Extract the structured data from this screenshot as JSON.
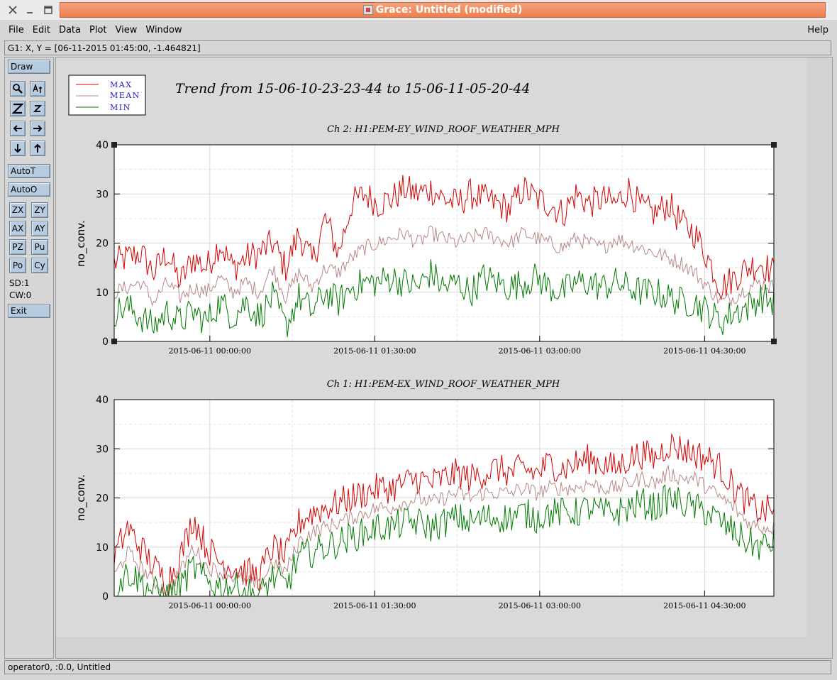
{
  "window": {
    "title": "Grace: Untitled (modified)"
  },
  "menu": {
    "file": "File",
    "edit": "Edit",
    "data": "Data",
    "plot": "Plot",
    "view": "View",
    "window": "Window",
    "help": "Help"
  },
  "locator": "G1: X, Y = [06-11-2015 01:45:00, -1.464821]",
  "toolbar": {
    "draw": "Draw",
    "autot": "AutoT",
    "autoo": "AutoO",
    "zx": "ZX",
    "zy": "ZY",
    "ax": "AX",
    "ay": "AY",
    "pz": "PZ",
    "pu": "Pu",
    "po": "Po",
    "cy": "Cy",
    "sd": "SD:1",
    "cw": "CW:0",
    "exit": "Exit"
  },
  "status": "operator0, :0.0, Untitled",
  "colors": {
    "max": "#d40000",
    "mean": "#b88888",
    "min": "#007a00"
  },
  "legend": {
    "max": "MAX",
    "mean": "MEAN",
    "min": "MIN"
  },
  "page_title": "Trend from 15-06-10-23-23-44 to 15-06-11-05-20-44",
  "chart_data": [
    {
      "type": "line",
      "title": "Ch 2: H1:PEM-EY_WIND_ROOF_WEATHER_MPH",
      "ylabel": "no_conv.",
      "ylim": [
        0,
        40
      ],
      "yticks": [
        0,
        10,
        20,
        30,
        40
      ],
      "xticks": [
        "2015-06-11 00:00:00",
        "2015-06-11 01:30:00",
        "2015-06-11 03:00:00",
        "2015-06-11 04:30:00"
      ],
      "grid": true,
      "x_span_minutes": 357,
      "series": [
        {
          "name": "MAX",
          "anchors": [
            16,
            17,
            18,
            14,
            18,
            12,
            17,
            15,
            20,
            15,
            17,
            18,
            20,
            15,
            22,
            16,
            25,
            18,
            28,
            30,
            28,
            29,
            31,
            30,
            31,
            29,
            28,
            30,
            29,
            28,
            27,
            31,
            29,
            28,
            26,
            30,
            28,
            29,
            28,
            31,
            27,
            26,
            28,
            24,
            22,
            17,
            11,
            13,
            15,
            16,
            14
          ]
        },
        {
          "name": "MEAN",
          "anchors": [
            10,
            11,
            12,
            8,
            12,
            9,
            11,
            10,
            13,
            10,
            12,
            10,
            15,
            9,
            14,
            11,
            15,
            14,
            17,
            19,
            20,
            21,
            22,
            20,
            22,
            21,
            20,
            21,
            22,
            21,
            20,
            22,
            21,
            20,
            19,
            21,
            20,
            19,
            21,
            20,
            19,
            18,
            17,
            16,
            14,
            11,
            8,
            9,
            11,
            12,
            11
          ]
        },
        {
          "name": "MIN",
          "anchors": [
            6,
            7,
            5,
            3,
            6,
            4,
            6,
            4,
            8,
            5,
            8,
            5,
            9,
            3,
            9,
            6,
            10,
            8,
            11,
            12,
            12,
            13,
            12,
            11,
            14,
            11,
            12,
            10,
            13,
            12,
            11,
            12,
            13,
            11,
            10,
            12,
            12,
            11,
            12,
            11,
            10,
            10,
            9,
            8,
            8,
            6,
            4,
            6,
            7,
            9,
            8
          ]
        }
      ]
    },
    {
      "type": "line",
      "title": "Ch 1: H1:PEM-EX_WIND_ROOF_WEATHER_MPH",
      "ylabel": "no_conv.",
      "ylim": [
        0,
        40
      ],
      "yticks": [
        0,
        10,
        20,
        30,
        40
      ],
      "xticks": [
        "2015-06-11 00:00:00",
        "2015-06-11 01:30:00",
        "2015-06-11 03:00:00",
        "2015-06-11 04:30:00"
      ],
      "grid": true,
      "x_span_minutes": 357,
      "series": [
        {
          "name": "MAX",
          "anchors": [
            8,
            14,
            10,
            6,
            3,
            8,
            16,
            10,
            7,
            6,
            5,
            4,
            10,
            8,
            15,
            17,
            18,
            19,
            20,
            21,
            22,
            22,
            23,
            24,
            23,
            24,
            25,
            24,
            25,
            26,
            25,
            26,
            25,
            27,
            26,
            27,
            28,
            27,
            26,
            28,
            29,
            28,
            31,
            30,
            29,
            28,
            26,
            22,
            19,
            17,
            18
          ]
        },
        {
          "name": "MEAN",
          "anchors": [
            4,
            9,
            6,
            3,
            1,
            5,
            10,
            6,
            5,
            4,
            3,
            2,
            7,
            5,
            11,
            13,
            14,
            15,
            16,
            17,
            18,
            18,
            19,
            20,
            19,
            20,
            21,
            20,
            21,
            21,
            21,
            22,
            21,
            22,
            22,
            22,
            23,
            22,
            22,
            23,
            24,
            23,
            25,
            24,
            24,
            22,
            20,
            18,
            15,
            14,
            14
          ]
        },
        {
          "name": "MIN",
          "anchors": [
            1,
            5,
            3,
            1,
            0,
            2,
            6,
            3,
            2,
            2,
            1,
            0,
            4,
            2,
            8,
            9,
            10,
            11,
            12,
            13,
            14,
            14,
            15,
            15,
            14,
            15,
            16,
            15,
            16,
            16,
            16,
            17,
            16,
            17,
            17,
            17,
            18,
            17,
            17,
            18,
            19,
            18,
            20,
            19,
            18,
            17,
            15,
            13,
            11,
            10,
            11
          ]
        }
      ]
    }
  ]
}
